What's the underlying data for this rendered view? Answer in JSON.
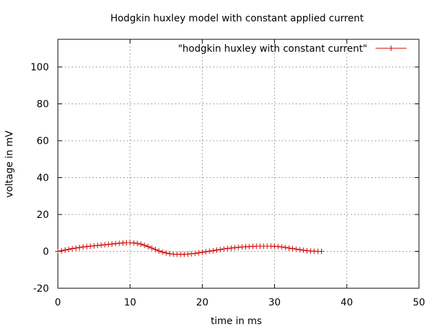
{
  "colors": {
    "series": "#cc0000",
    "grid": "#a0a0a0",
    "axis": "#000000",
    "background": "#ffffff"
  },
  "chart_data": {
    "type": "line",
    "title": "Hodgkin huxley model with constant applied current",
    "xlabel": "time in ms",
    "ylabel": "voltage in mV",
    "xlim": [
      0,
      50
    ],
    "ylim": [
      -20,
      115
    ],
    "xticks": [
      0,
      10,
      20,
      30,
      40,
      50
    ],
    "yticks": [
      -20,
      0,
      20,
      40,
      60,
      80,
      100
    ],
    "grid": true,
    "legend_position": "top-right",
    "marker": "plus",
    "series": [
      {
        "name": "\"hodgkin huxley with constant current\"",
        "x": [
          0,
          0.5,
          1,
          1.5,
          2,
          2.5,
          3,
          3.5,
          4,
          4.5,
          5,
          5.5,
          6,
          6.5,
          7,
          7.5,
          8,
          8.5,
          9,
          9.5,
          10,
          10.5,
          11,
          11.5,
          12,
          12.5,
          13,
          13.5,
          14,
          14.5,
          15,
          15.5,
          16,
          16.5,
          17,
          17.5,
          18,
          18.5,
          19,
          19.5,
          20,
          20.5,
          21,
          21.5,
          22,
          22.5,
          23,
          23.5,
          24,
          24.5,
          25,
          25.5,
          26,
          26.5,
          27,
          27.5,
          28,
          28.5,
          29,
          29.5,
          30,
          30.5,
          31,
          31.5,
          32,
          32.5,
          33,
          33.5,
          34,
          34.5,
          35,
          35.5,
          36,
          36.5
        ],
        "y": [
          0,
          0.3,
          0.7,
          1.1,
          1.5,
          1.8,
          2.1,
          2.4,
          2.6,
          2.8,
          3.0,
          3.2,
          3.4,
          3.6,
          3.8,
          4.0,
          4.2,
          4.4,
          4.6,
          4.7,
          4.7,
          4.6,
          4.3,
          3.9,
          3.3,
          2.6,
          1.8,
          1.0,
          0.2,
          -0.4,
          -0.9,
          -1.3,
          -1.5,
          -1.6,
          -1.6,
          -1.6,
          -1.5,
          -1.3,
          -1.1,
          -0.8,
          -0.5,
          -0.2,
          0.1,
          0.4,
          0.7,
          1.0,
          1.3,
          1.6,
          1.8,
          2.0,
          2.2,
          2.4,
          2.5,
          2.6,
          2.7,
          2.8,
          2.8,
          2.8,
          2.8,
          2.8,
          2.7,
          2.6,
          2.4,
          2.1,
          1.8,
          1.5,
          1.2,
          0.9,
          0.6,
          0.4,
          0.2,
          0.1,
          0.0,
          0.0
        ]
      }
    ]
  }
}
